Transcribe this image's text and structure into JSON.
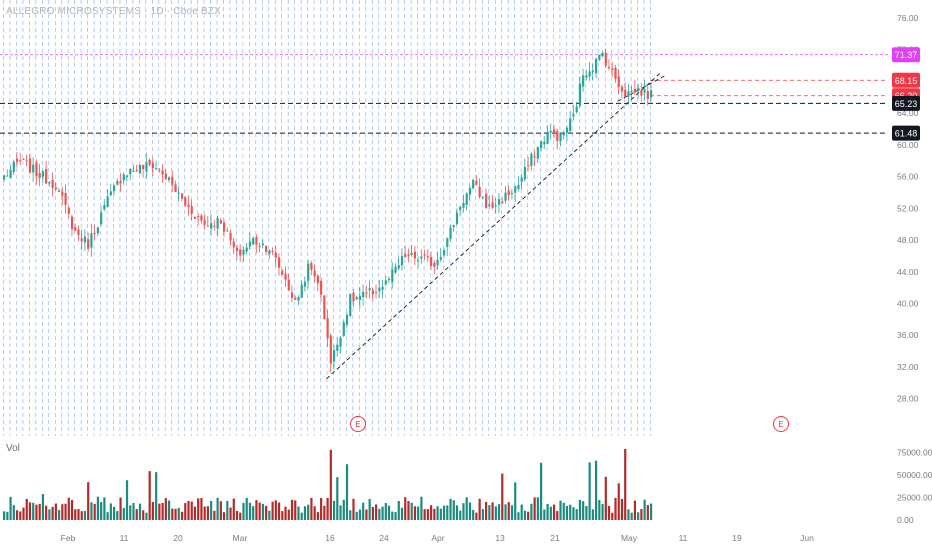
{
  "header": {
    "title": "ALLEGRO MICROSYSTEMS · 1D · Cboe BZX"
  },
  "volume_pane": {
    "label": "Vol"
  },
  "earnings_marker": "E",
  "colors": {
    "up": "#26a69a",
    "down": "#ef5350",
    "grid": "#5b8def",
    "magenta": "#e040fb",
    "red": "#f23645",
    "black": "#131722",
    "text": "#787b86"
  },
  "chart_data": [
    {
      "type": "candlestick",
      "title": "ALLEGRO MICROSYSTEMS · 1D · Cboe BZX",
      "y_ticks": [
        76.0,
        72.0,
        68.0,
        64.0,
        60.0,
        56.0,
        52.0,
        48.0,
        44.0,
        40.0,
        36.0,
        32.0,
        28.0
      ],
      "ylim": [
        24.0,
        78.0
      ],
      "x_ticks": [
        "Feb",
        "11",
        "20",
        "Mar",
        "16",
        "24",
        "Apr",
        "13",
        "21",
        "May",
        "11",
        "19",
        "Jun"
      ],
      "close_anchors": [
        [
          0,
          56.0
        ],
        [
          5,
          58.0
        ],
        [
          10,
          56.5
        ],
        [
          16,
          55.0
        ],
        [
          22,
          49.0
        ],
        [
          26,
          47.5
        ],
        [
          32,
          53.0
        ],
        [
          37,
          56.5
        ],
        [
          41,
          57.0
        ],
        [
          46,
          57.5
        ],
        [
          50,
          56.0
        ],
        [
          56,
          52.5
        ],
        [
          62,
          50.0
        ],
        [
          67,
          50.5
        ],
        [
          72,
          46.0
        ],
        [
          77,
          48.0
        ],
        [
          82,
          47.0
        ],
        [
          87,
          43.0
        ],
        [
          90,
          40.0
        ],
        [
          94,
          44.5
        ],
        [
          97,
          43.0
        ],
        [
          100,
          36.0
        ],
        [
          101,
          32.5
        ],
        [
          103,
          35.0
        ],
        [
          107,
          40.5
        ],
        [
          112,
          41.0
        ],
        [
          118,
          42.5
        ],
        [
          124,
          46.0
        ],
        [
          130,
          45.5
        ],
        [
          133,
          45.0
        ],
        [
          137,
          48.0
        ],
        [
          141,
          52.5
        ],
        [
          145,
          55.0
        ],
        [
          150,
          52.0
        ],
        [
          155,
          53.5
        ],
        [
          159,
          55.0
        ],
        [
          164,
          59.0
        ],
        [
          168,
          61.5
        ],
        [
          172,
          61.0
        ],
        [
          176,
          63.5
        ],
        [
          179,
          69.0
        ],
        [
          182,
          70.0
        ],
        [
          185,
          71.5
        ],
        [
          188,
          69.0
        ],
        [
          192,
          66.5
        ],
        [
          196,
          67.0
        ],
        [
          198,
          66.5
        ],
        [
          200,
          66.2
        ]
      ],
      "volume": {
        "ticks": [
          "75000.00",
          "50000.00",
          "25000.00",
          "0.00"
        ],
        "max": 80000
      },
      "levels": [
        {
          "value": 71.37,
          "label": "71.37",
          "style": "magenta"
        },
        {
          "value": 68.15,
          "label": "68.15",
          "style": "red"
        },
        {
          "value": 66.2,
          "label": "66.20",
          "style": "red"
        },
        {
          "value": 65.23,
          "label": "65.23",
          "style": "black"
        },
        {
          "value": 61.48,
          "label": "61.48",
          "style": "black"
        }
      ]
    }
  ]
}
